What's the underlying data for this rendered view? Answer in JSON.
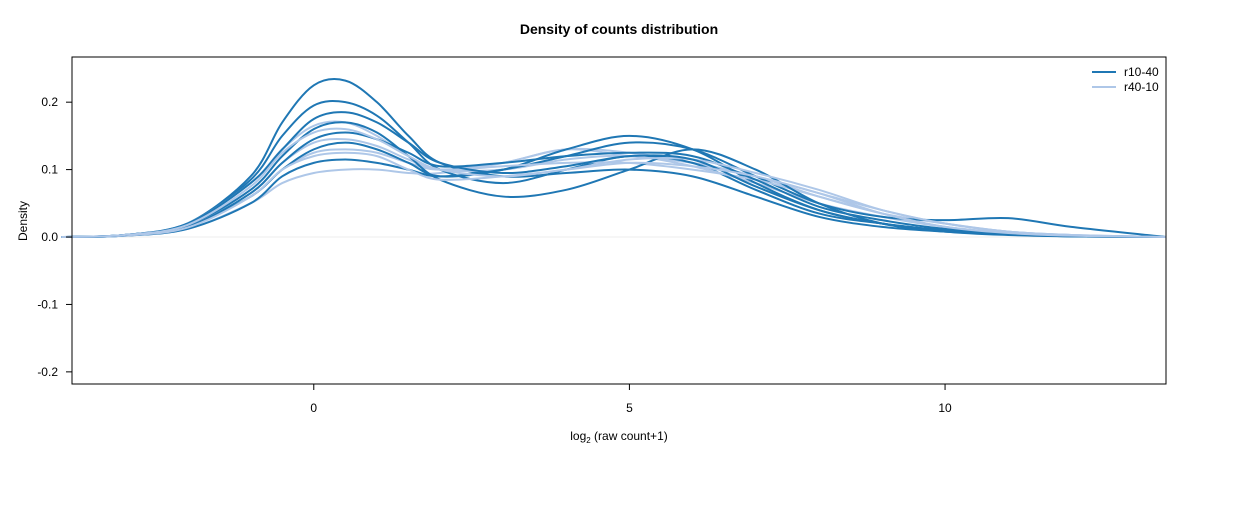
{
  "chart_data": {
    "type": "line",
    "title": "Density of counts distribution",
    "xlabel": {
      "main": "log",
      "sub": "2",
      "rest": " (raw count+1)"
    },
    "ylabel": "Density",
    "xlim": [
      -3.83,
      13.5
    ],
    "ylim": [
      -0.218,
      0.267
    ],
    "xticks": [
      0,
      5,
      10
    ],
    "yticks": [
      -0.2,
      -0.1,
      0.0,
      0.1,
      0.2
    ],
    "ytick_labels": [
      "-0.2",
      "-0.1",
      "0.0",
      "0.1",
      "0.2"
    ],
    "grid": false,
    "legend_position": "top-right",
    "legend": [
      {
        "label": "r10-40",
        "color": "#1f77b4"
      },
      {
        "label": "r40-10",
        "color": "#aec7e8"
      }
    ],
    "x": [
      -4,
      -3,
      -2,
      -1,
      -0.5,
      0,
      0.5,
      1,
      1.5,
      2,
      3,
      4,
      5,
      6,
      7,
      8,
      9,
      10,
      11,
      12,
      13.5
    ],
    "series": [
      {
        "group": "r40-10",
        "color": "#aec7e8",
        "values": [
          0,
          0.002,
          0.015,
          0.06,
          0.1,
          0.125,
          0.13,
          0.125,
          0.11,
          0.1,
          0.11,
          0.13,
          0.12,
          0.11,
          0.09,
          0.06,
          0.035,
          0.02,
          0.008,
          0.003,
          0
        ]
      },
      {
        "group": "r40-10",
        "color": "#aec7e8",
        "values": [
          0,
          0.002,
          0.012,
          0.05,
          0.08,
          0.095,
          0.1,
          0.1,
          0.095,
          0.095,
          0.11,
          0.13,
          0.125,
          0.11,
          0.09,
          0.065,
          0.04,
          0.02,
          0.008,
          0.003,
          0
        ]
      },
      {
        "group": "r10-40",
        "color": "#1f77b4",
        "values": [
          0,
          0.003,
          0.02,
          0.09,
          0.17,
          0.225,
          0.232,
          0.2,
          0.15,
          0.11,
          0.09,
          0.095,
          0.1,
          0.09,
          0.06,
          0.03,
          0.015,
          0.008,
          0.004,
          0.002,
          0
        ]
      },
      {
        "group": "r10-40",
        "color": "#1f77b4",
        "values": [
          0,
          0.003,
          0.02,
          0.085,
          0.15,
          0.195,
          0.2,
          0.18,
          0.14,
          0.1,
          0.08,
          0.1,
          0.12,
          0.11,
          0.07,
          0.035,
          0.02,
          0.01,
          0.005,
          0.002,
          0
        ]
      },
      {
        "group": "r40-10",
        "color": "#aec7e8",
        "values": [
          0,
          0.003,
          0.02,
          0.08,
          0.13,
          0.165,
          0.17,
          0.15,
          0.12,
          0.1,
          0.1,
          0.115,
          0.12,
          0.105,
          0.08,
          0.05,
          0.03,
          0.015,
          0.006,
          0.002,
          0
        ]
      },
      {
        "group": "r10-40",
        "color": "#1f77b4",
        "values": [
          0,
          0.002,
          0.015,
          0.06,
          0.1,
          0.13,
          0.14,
          0.13,
          0.11,
          0.09,
          0.1,
          0.13,
          0.15,
          0.13,
          0.08,
          0.04,
          0.02,
          0.01,
          0.004,
          0.001,
          0
        ]
      },
      {
        "group": "r10-40",
        "color": "#1f77b4",
        "values": [
          0,
          0.002,
          0.012,
          0.05,
          0.09,
          0.11,
          0.115,
          0.11,
          0.1,
          0.09,
          0.1,
          0.12,
          0.14,
          0.13,
          0.09,
          0.05,
          0.03,
          0.025,
          0.028,
          0.015,
          0
        ]
      },
      {
        "group": "r40-10",
        "color": "#aec7e8",
        "values": [
          0,
          0.002,
          0.016,
          0.065,
          0.11,
          0.14,
          0.145,
          0.135,
          0.115,
          0.1,
          0.105,
          0.11,
          0.11,
          0.1,
          0.085,
          0.06,
          0.035,
          0.015,
          0.006,
          0.002,
          0
        ]
      },
      {
        "group": "r10-40",
        "color": "#1f77b4",
        "values": [
          0,
          0.003,
          0.018,
          0.07,
          0.12,
          0.16,
          0.17,
          0.155,
          0.12,
          0.085,
          0.06,
          0.07,
          0.1,
          0.13,
          0.1,
          0.05,
          0.02,
          0.008,
          0.003,
          0.001,
          0
        ]
      },
      {
        "group": "r10-40",
        "color": "#1f77b4",
        "values": [
          0,
          0.002,
          0.015,
          0.065,
          0.11,
          0.145,
          0.155,
          0.145,
          0.125,
          0.105,
          0.11,
          0.12,
          0.125,
          0.12,
          0.085,
          0.045,
          0.025,
          0.012,
          0.005,
          0.002,
          0
        ]
      },
      {
        "group": "r40-10",
        "color": "#aec7e8",
        "values": [
          0,
          0.002,
          0.014,
          0.06,
          0.1,
          0.12,
          0.125,
          0.12,
          0.1,
          0.085,
          0.09,
          0.1,
          0.115,
          0.115,
          0.095,
          0.07,
          0.04,
          0.02,
          0.008,
          0.003,
          0
        ]
      },
      {
        "group": "r10-40",
        "color": "#1f77b4",
        "values": [
          0,
          0.003,
          0.02,
          0.08,
          0.13,
          0.175,
          0.185,
          0.17,
          0.14,
          0.11,
          0.095,
          0.105,
          0.12,
          0.115,
          0.075,
          0.04,
          0.02,
          0.01,
          0.004,
          0.001,
          0
        ]
      },
      {
        "group": "r40-10",
        "color": "#aec7e8",
        "values": [
          0,
          0.003,
          0.018,
          0.075,
          0.125,
          0.155,
          0.16,
          0.145,
          0.12,
          0.1,
          0.09,
          0.1,
          0.11,
          0.105,
          0.09,
          0.065,
          0.035,
          0.015,
          0.006,
          0.002,
          0
        ]
      }
    ]
  }
}
